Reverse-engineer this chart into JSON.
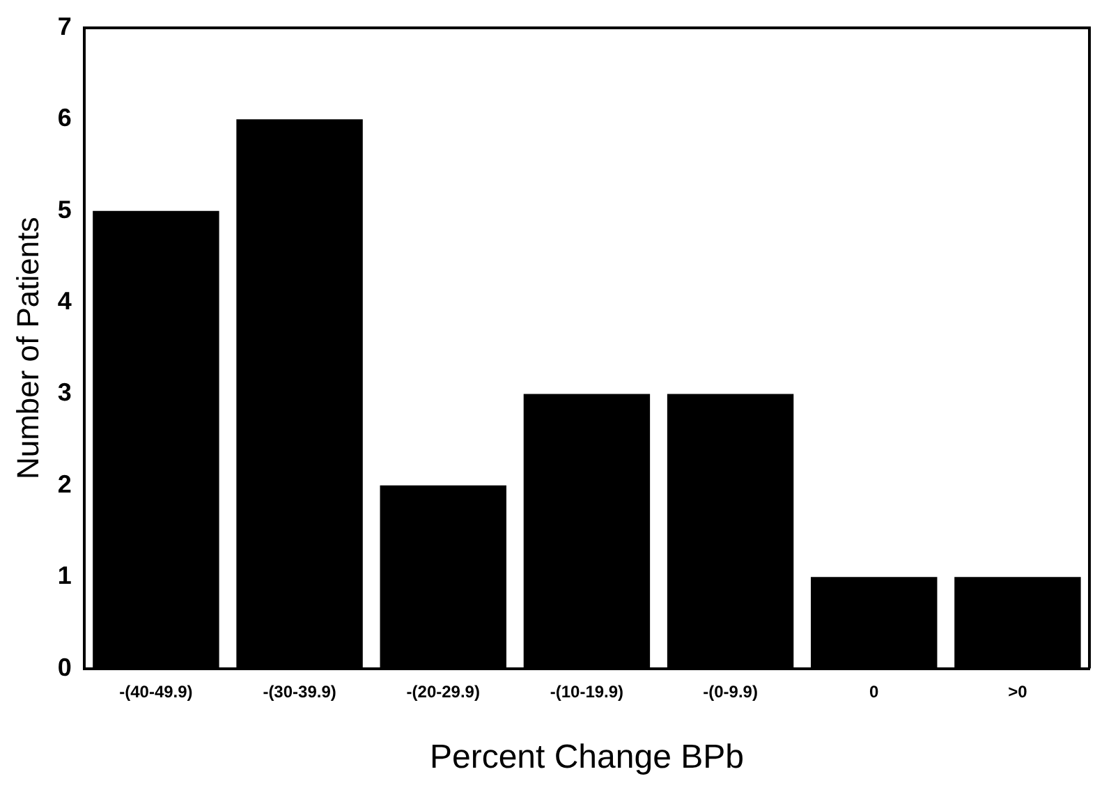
{
  "chart_data": {
    "type": "bar",
    "xlabel": "Percent Change BPb",
    "ylabel": "Number of Patients",
    "categories": [
      "-(40-49.9)",
      "-(30-39.9)",
      "-(20-29.9)",
      "-(10-19.9)",
      "-(0-9.9)",
      "0",
      ">0"
    ],
    "values": [
      5,
      6,
      2,
      3,
      3,
      1,
      1
    ],
    "color": "#000000",
    "ylim": [
      0,
      7
    ],
    "yticks": [
      0,
      1,
      2,
      3,
      4,
      5,
      6,
      7
    ],
    "grid": false,
    "legend": false
  }
}
